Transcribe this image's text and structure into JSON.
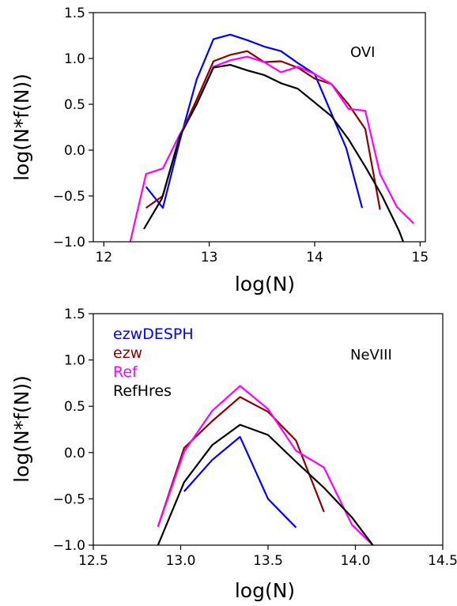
{
  "chart_data": [
    {
      "type": "line",
      "annotation": "OVI",
      "xlabel": "log(N)",
      "ylabel": "log(N*f(N))",
      "xlim": [
        11.9,
        15.05
      ],
      "ylim": [
        -1.0,
        1.5
      ],
      "xticks": [
        12,
        13,
        14,
        15
      ],
      "xtick_labels": [
        "12",
        "13",
        "14",
        "15"
      ],
      "yticks": [
        -1.0,
        -0.5,
        0.0,
        0.5,
        1.0,
        1.5
      ],
      "ytick_labels": [
        "−1.0",
        "−0.5",
        "0.0",
        "0.5",
        "1.0",
        "1.5"
      ],
      "series": [
        {
          "name": "ezwDESPH",
          "color": "#0000ff",
          "x": [
            12.4,
            12.56,
            12.72,
            12.88,
            13.04,
            13.2,
            13.36,
            13.52,
            13.68,
            13.84,
            14.0,
            14.14,
            14.3,
            14.45
          ],
          "y": [
            -0.4,
            -0.63,
            0.1,
            0.77,
            1.21,
            1.26,
            1.2,
            1.13,
            1.08,
            0.95,
            0.83,
            0.45,
            0.02,
            -0.63
          ]
        },
        {
          "name": "ezw",
          "color": "#8b0000",
          "x": [
            12.4,
            12.56,
            12.72,
            12.88,
            13.04,
            13.2,
            13.36,
            13.52,
            13.68,
            13.84,
            14.0,
            14.16,
            14.32,
            14.48,
            14.62
          ],
          "y": [
            -0.63,
            -0.5,
            0.15,
            0.55,
            0.97,
            1.04,
            1.08,
            0.96,
            0.97,
            0.9,
            0.78,
            0.72,
            0.5,
            0.23,
            -0.65
          ]
        },
        {
          "name": "Ref",
          "color": "#ff00ff",
          "x": [
            12.25,
            12.4,
            12.56,
            12.72,
            12.88,
            13.04,
            13.2,
            13.36,
            13.52,
            13.68,
            13.84,
            14.0,
            14.16,
            14.32,
            14.48,
            14.62,
            14.78,
            14.94
          ],
          "y": [
            -1.0,
            -0.26,
            -0.2,
            0.17,
            0.5,
            0.91,
            0.98,
            1.02,
            0.96,
            0.85,
            0.91,
            0.83,
            0.72,
            0.45,
            0.43,
            -0.26,
            -0.62,
            -0.8
          ]
        },
        {
          "name": "RefHres",
          "color": "#000000",
          "x": [
            12.38,
            12.55,
            12.72,
            12.88,
            13.04,
            13.2,
            13.36,
            13.52,
            13.68,
            13.84,
            14.0,
            14.16,
            14.32,
            14.48,
            14.64,
            14.8,
            14.84
          ],
          "y": [
            -0.86,
            -0.53,
            0.15,
            0.5,
            0.9,
            0.93,
            0.87,
            0.82,
            0.73,
            0.67,
            0.52,
            0.37,
            0.12,
            -0.18,
            -0.5,
            -0.88,
            -1.0
          ]
        }
      ]
    },
    {
      "type": "line",
      "annotation": "NeVIII",
      "xlabel": "log(N)",
      "ylabel": "log(N*f(N))",
      "xlim": [
        12.5,
        14.5
      ],
      "ylim": [
        -1.0,
        1.5
      ],
      "xticks": [
        12.5,
        13.0,
        13.5,
        14.0,
        14.5
      ],
      "xtick_labels": [
        "12.5",
        "13.0",
        "13.5",
        "14.0",
        "14.5"
      ],
      "yticks": [
        -1.0,
        -0.5,
        0.0,
        0.5,
        1.0,
        1.5
      ],
      "ytick_labels": [
        "−1.0",
        "−0.5",
        "0.0",
        "0.5",
        "1.0",
        "1.5"
      ],
      "legend": {
        "placement": "top-left",
        "entries": [
          "ezwDESPH",
          "ezw",
          "Ref",
          "RefHres"
        ]
      },
      "series": [
        {
          "name": "ezwDESPH",
          "color": "#0000ff",
          "x": [
            13.02,
            13.18,
            13.34,
            13.5,
            13.66
          ],
          "y": [
            -0.42,
            -0.08,
            0.17,
            -0.5,
            -0.81
          ]
        },
        {
          "name": "ezw",
          "color": "#8b0000",
          "x": [
            12.87,
            13.02,
            13.18,
            13.34,
            13.5,
            13.66,
            13.82
          ],
          "y": [
            -0.8,
            0.05,
            0.34,
            0.6,
            0.44,
            0.13,
            -0.64
          ]
        },
        {
          "name": "Ref",
          "color": "#ff00ff",
          "x": [
            12.87,
            13.02,
            13.18,
            13.34,
            13.5,
            13.66,
            13.82,
            13.98,
            14.1
          ],
          "y": [
            -0.8,
            0.01,
            0.45,
            0.72,
            0.47,
            0.02,
            -0.16,
            -0.78,
            -1.0
          ]
        },
        {
          "name": "RefHres",
          "color": "#000000",
          "x": [
            12.87,
            13.02,
            13.18,
            13.34,
            13.5,
            13.66,
            13.82,
            13.98,
            14.1
          ],
          "y": [
            -1.0,
            -0.32,
            0.08,
            0.3,
            0.19,
            -0.1,
            -0.38,
            -0.7,
            -1.0
          ]
        }
      ]
    }
  ]
}
